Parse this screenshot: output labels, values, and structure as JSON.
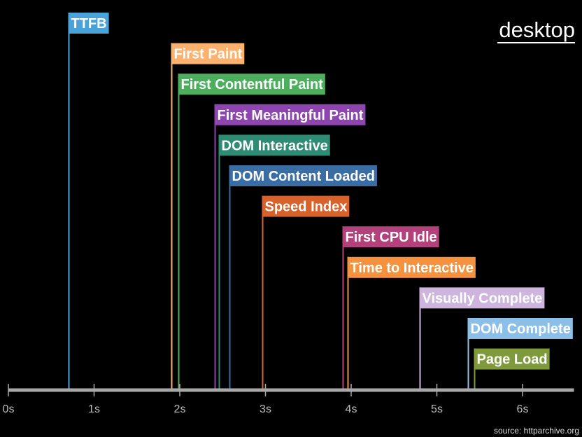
{
  "chart_data": {
    "type": "timeline",
    "title": "desktop",
    "source": "source: httparchive.org",
    "xlabel": "",
    "xlim": [
      0,
      6.6
    ],
    "x_ticks": [
      0,
      1,
      2,
      3,
      4,
      5,
      6
    ],
    "x_tick_labels": [
      "0s",
      "1s",
      "2s",
      "3s",
      "4s",
      "5s",
      "6s"
    ],
    "axis_color": "#a8a8a8",
    "metrics": [
      {
        "name": "TTFB",
        "value": 0.7,
        "color": "#4aa3d8"
      },
      {
        "name": "First Paint",
        "value": 1.9,
        "color": "#fbb26e"
      },
      {
        "name": "First Contentful Paint",
        "value": 1.98,
        "color": "#4dae5e"
      },
      {
        "name": "First Meaningful Paint",
        "value": 2.41,
        "color": "#8e45b0"
      },
      {
        "name": "DOM Interactive",
        "value": 2.46,
        "color": "#2e8b74"
      },
      {
        "name": "DOM Content Loaded",
        "value": 2.58,
        "color": "#3a6da3"
      },
      {
        "name": "Speed Index",
        "value": 2.96,
        "color": "#d8622c"
      },
      {
        "name": "First CPU Idle",
        "value": 3.9,
        "color": "#b3417b"
      },
      {
        "name": "Time to Interactive",
        "value": 3.96,
        "color": "#f6923e"
      },
      {
        "name": "Visually Complete",
        "value": 4.8,
        "color": "#cdb5de"
      },
      {
        "name": "DOM Complete",
        "value": 5.36,
        "color": "#8bbfe8"
      },
      {
        "name": "Page Load",
        "value": 5.44,
        "color": "#7f9a3a"
      }
    ]
  }
}
